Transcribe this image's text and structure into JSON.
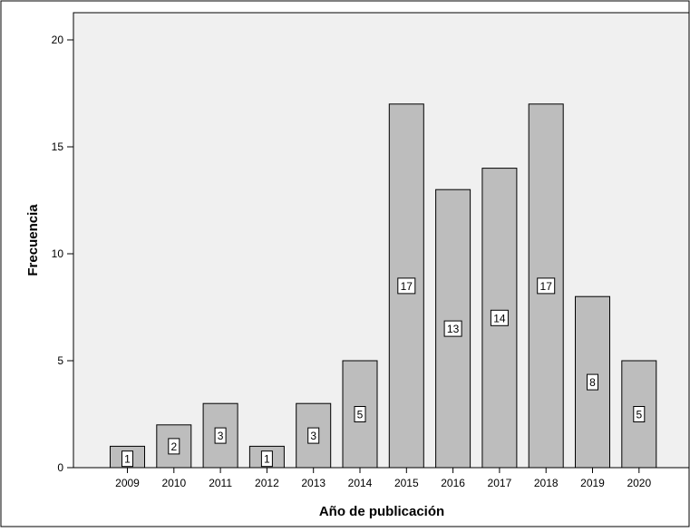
{
  "chart_data": {
    "type": "bar",
    "title": "",
    "xlabel": "Año de publicación",
    "ylabel": "Frecuencia",
    "categories": [
      "2009",
      "2010",
      "2011",
      "2012",
      "2013",
      "2014",
      "2015",
      "2016",
      "2017",
      "2018",
      "2019",
      "2020"
    ],
    "values": [
      1,
      2,
      3,
      1,
      3,
      5,
      17,
      13,
      14,
      17,
      8,
      5
    ],
    "ylim": [
      0,
      21
    ],
    "yticks": [
      0,
      5,
      10,
      15,
      20
    ],
    "grid": false,
    "legend": "none",
    "colors": {
      "bar_fill": "#bdbdbd",
      "bar_stroke": "#000000",
      "plot_background": "#f0f0f0",
      "page_background": "#ffffff"
    }
  }
}
